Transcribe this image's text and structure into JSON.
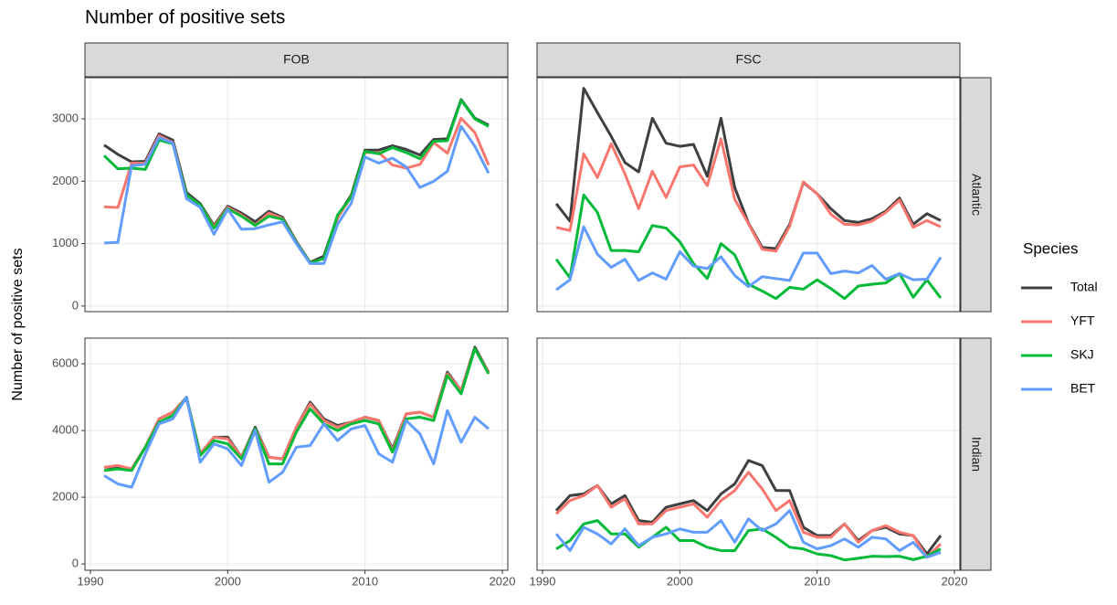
{
  "chart_data": {
    "type": "line",
    "title": "Number of positive sets",
    "y_label": "Number of positive sets",
    "legend_title": "Species",
    "facet_cols": [
      "FOB",
      "FSC"
    ],
    "facet_rows": [
      "Atlantic",
      "Indian"
    ],
    "x": [
      1991,
      1992,
      1993,
      1994,
      1995,
      1996,
      1997,
      1998,
      1999,
      2000,
      2001,
      2002,
      2003,
      2004,
      2005,
      2006,
      2007,
      2008,
      2009,
      2010,
      2011,
      2012,
      2013,
      2014,
      2015,
      2016,
      2017,
      2018,
      2019
    ],
    "xlim": [
      1989.6,
      2020.4
    ],
    "xticks": [
      1990,
      2000,
      2010,
      2020
    ],
    "rows": [
      {
        "ylim": [
          -90,
          3660
        ],
        "yticks": [
          0,
          1000,
          2000,
          3000
        ]
      },
      {
        "ylim": [
          -190,
          6770
        ],
        "yticks": [
          0,
          2000,
          4000,
          6000
        ]
      }
    ],
    "grid": true,
    "series": [
      {
        "name": "Total",
        "color": "#404040"
      },
      {
        "name": "YFT",
        "color": "#F8766D"
      },
      {
        "name": "SKJ",
        "color": "#00BA38"
      },
      {
        "name": "BET",
        "color": "#619CFF"
      }
    ],
    "panels": [
      [
        [
          [
            2580,
            2430,
            2310,
            2320,
            2760,
            2660,
            1820,
            1640,
            1290,
            1600,
            1490,
            1350,
            1520,
            1420,
            1030,
            700,
            800,
            1440,
            1780,
            2500,
            2500,
            2570,
            2510,
            2420,
            2670,
            2680,
            3310,
            3010,
            2900
          ],
          [
            1590,
            1580,
            2290,
            2290,
            2730,
            2620,
            1780,
            1620,
            1270,
            1580,
            1460,
            1300,
            1490,
            1400,
            1010,
            690,
            760,
            1410,
            1760,
            2460,
            2460,
            2260,
            2210,
            2270,
            2620,
            2450,
            3010,
            2780,
            2260
          ],
          [
            2410,
            2200,
            2210,
            2190,
            2660,
            2600,
            1780,
            1620,
            1250,
            1560,
            1440,
            1290,
            1440,
            1390,
            1010,
            690,
            760,
            1460,
            1750,
            2480,
            2440,
            2540,
            2460,
            2360,
            2640,
            2650,
            3300,
            3000,
            2880
          ],
          [
            1010,
            1020,
            2250,
            2270,
            2700,
            2610,
            1720,
            1580,
            1150,
            1550,
            1230,
            1240,
            1300,
            1350,
            1000,
            680,
            680,
            1310,
            1650,
            2390,
            2290,
            2370,
            2230,
            1900,
            2000,
            2160,
            2880,
            2560,
            2130
          ]
        ],
        [
          [
            1640,
            1360,
            3490,
            3100,
            2720,
            2300,
            2150,
            3010,
            2610,
            2560,
            2590,
            2080,
            3010,
            1900,
            1330,
            940,
            920,
            1310,
            1980,
            1800,
            1560,
            1370,
            1340,
            1400,
            1520,
            1730,
            1310,
            1480,
            1370
          ],
          [
            1260,
            1210,
            2440,
            2060,
            2600,
            2120,
            1560,
            2160,
            1740,
            2230,
            2260,
            1930,
            2680,
            1710,
            1320,
            910,
            880,
            1280,
            1990,
            1800,
            1470,
            1310,
            1300,
            1360,
            1500,
            1700,
            1260,
            1370,
            1270
          ],
          [
            750,
            450,
            1780,
            1500,
            890,
            890,
            870,
            1290,
            1250,
            1030,
            680,
            440,
            1000,
            820,
            350,
            240,
            120,
            300,
            270,
            420,
            280,
            120,
            320,
            350,
            370,
            520,
            140,
            420,
            130
          ],
          [
            260,
            420,
            1270,
            830,
            620,
            750,
            410,
            530,
            430,
            870,
            640,
            600,
            790,
            490,
            310,
            470,
            440,
            410,
            850,
            850,
            520,
            560,
            530,
            650,
            430,
            520,
            420,
            430,
            780
          ]
        ]
      ],
      [
        [
          [
            2900,
            2900,
            2850,
            3500,
            4350,
            4550,
            4950,
            3300,
            3800,
            3800,
            3200,
            4100,
            3200,
            3150,
            4100,
            4850,
            4350,
            4150,
            4250,
            4400,
            4300,
            3450,
            4500,
            4550,
            4400,
            5750,
            5200,
            6500,
            5750
          ],
          [
            2900,
            2950,
            2850,
            3500,
            4350,
            4550,
            5000,
            3300,
            3800,
            3750,
            3200,
            4050,
            3200,
            3150,
            4100,
            4800,
            4300,
            4100,
            4250,
            4400,
            4300,
            3400,
            4500,
            4550,
            4400,
            5700,
            5200,
            6450,
            5750
          ],
          [
            2800,
            2850,
            2800,
            3500,
            4250,
            4450,
            5000,
            3250,
            3700,
            3600,
            3150,
            4050,
            3000,
            3000,
            3950,
            4650,
            4200,
            4000,
            4200,
            4300,
            4200,
            3350,
            4350,
            4400,
            4300,
            5650,
            5100,
            6450,
            5700
          ],
          [
            2650,
            2400,
            2300,
            3300,
            4200,
            4350,
            5000,
            3050,
            3600,
            3450,
            2950,
            4000,
            2450,
            2750,
            3500,
            3550,
            4200,
            3700,
            4050,
            4150,
            3300,
            3050,
            4300,
            3900,
            3000,
            4600,
            3650,
            4400,
            4050
          ]
        ],
        [
          [
            1600,
            2050,
            2100,
            2350,
            1800,
            2050,
            1300,
            1250,
            1700,
            1800,
            1900,
            1600,
            2100,
            2400,
            3100,
            2950,
            2200,
            2200,
            1100,
            850,
            850,
            1200,
            700,
            1000,
            1100,
            900,
            850,
            300,
            850
          ],
          [
            1500,
            1900,
            2050,
            2350,
            1700,
            1950,
            1200,
            1200,
            1600,
            1700,
            1800,
            1400,
            1900,
            2200,
            2750,
            2250,
            1600,
            1900,
            950,
            800,
            800,
            1200,
            650,
            1000,
            1150,
            950,
            850,
            200,
            600
          ],
          [
            450,
            700,
            1200,
            1300,
            900,
            900,
            500,
            800,
            1100,
            700,
            700,
            500,
            400,
            400,
            1000,
            1050,
            800,
            500,
            450,
            300,
            250,
            120,
            170,
            230,
            220,
            230,
            130,
            230,
            450
          ],
          [
            900,
            400,
            1100,
            900,
            600,
            1050,
            550,
            800,
            900,
            1050,
            950,
            950,
            1300,
            650,
            1350,
            1000,
            1200,
            1600,
            650,
            450,
            550,
            750,
            500,
            800,
            750,
            400,
            650,
            200,
            350
          ]
        ]
      ]
    ]
  }
}
